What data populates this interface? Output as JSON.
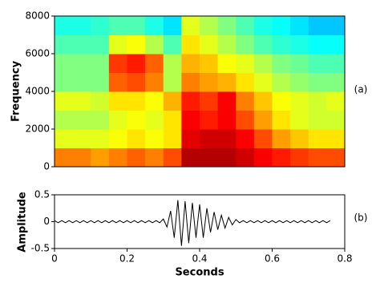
{
  "chart_data": [
    {
      "type": "heatmap",
      "annotation": "(a)",
      "y_label": "Frequency",
      "xlim": [
        0,
        0.8
      ],
      "ylim": [
        0,
        8000
      ],
      "yticks": [
        0,
        2000,
        4000,
        6000,
        8000
      ],
      "colormap": "jet",
      "z": [
        [
          0.75,
          0.75,
          0.72,
          0.75,
          0.78,
          0.75,
          0.8,
          0.95,
          0.95,
          0.95,
          0.92,
          0.88,
          0.85,
          0.82,
          0.8,
          0.8
        ],
        [
          0.6,
          0.6,
          0.6,
          0.62,
          0.65,
          0.62,
          0.65,
          0.9,
          0.92,
          0.92,
          0.88,
          0.8,
          0.72,
          0.68,
          0.65,
          0.65
        ],
        [
          0.55,
          0.55,
          0.55,
          0.6,
          0.62,
          0.6,
          0.65,
          0.88,
          0.85,
          0.88,
          0.8,
          0.72,
          0.65,
          0.6,
          0.58,
          0.58
        ],
        [
          0.6,
          0.6,
          0.58,
          0.65,
          0.65,
          0.62,
          0.7,
          0.85,
          0.82,
          0.88,
          0.75,
          0.68,
          0.62,
          0.6,
          0.58,
          0.6
        ],
        [
          0.5,
          0.5,
          0.5,
          0.78,
          0.8,
          0.75,
          0.55,
          0.75,
          0.72,
          0.7,
          0.65,
          0.6,
          0.55,
          0.52,
          0.5,
          0.5
        ],
        [
          0.5,
          0.5,
          0.5,
          0.82,
          0.85,
          0.78,
          0.55,
          0.7,
          0.68,
          0.62,
          0.6,
          0.55,
          0.5,
          0.48,
          0.45,
          0.45
        ],
        [
          0.45,
          0.45,
          0.45,
          0.6,
          0.62,
          0.55,
          0.45,
          0.65,
          0.6,
          0.55,
          0.5,
          0.45,
          0.42,
          0.4,
          0.38,
          0.38
        ],
        [
          0.4,
          0.4,
          0.42,
          0.45,
          0.45,
          0.4,
          0.35,
          0.6,
          0.55,
          0.5,
          0.45,
          0.4,
          0.38,
          0.35,
          0.32,
          0.32
        ]
      ]
    },
    {
      "type": "line",
      "annotation": "(b)",
      "x_label": "Seconds",
      "y_label": "Amplitude",
      "color": "#000000",
      "xlim": [
        0,
        0.8
      ],
      "xticks": [
        0,
        0.2,
        0.4,
        0.6,
        0.8
      ],
      "ylim": [
        -0.5,
        0.5
      ],
      "yticks": [
        -0.5,
        0,
        0.5
      ],
      "x": [
        0,
        0.01,
        0.02,
        0.03,
        0.04,
        0.05,
        0.06,
        0.07,
        0.08,
        0.09,
        0.1,
        0.11,
        0.12,
        0.13,
        0.14,
        0.15,
        0.16,
        0.17,
        0.18,
        0.19,
        0.2,
        0.21,
        0.22,
        0.23,
        0.24,
        0.25,
        0.26,
        0.27,
        0.28,
        0.29,
        0.3,
        0.31,
        0.32,
        0.33,
        0.34,
        0.35,
        0.36,
        0.37,
        0.38,
        0.39,
        0.4,
        0.41,
        0.42,
        0.43,
        0.44,
        0.45,
        0.46,
        0.47,
        0.48,
        0.49,
        0.5,
        0.51,
        0.52,
        0.53,
        0.54,
        0.55,
        0.56,
        0.57,
        0.58,
        0.59,
        0.6,
        0.61,
        0.62,
        0.63,
        0.64,
        0.65,
        0.66,
        0.67,
        0.68,
        0.69,
        0.7,
        0.71,
        0.72,
        0.73,
        0.74,
        0.75,
        0.76
      ],
      "values": [
        0.02,
        -0.02,
        0.02,
        -0.02,
        0.02,
        -0.02,
        0.02,
        -0.02,
        0.02,
        -0.02,
        0.02,
        -0.02,
        0.02,
        -0.02,
        0.02,
        -0.02,
        0.02,
        -0.02,
        0.02,
        -0.02,
        0.02,
        -0.02,
        0.02,
        -0.02,
        0.02,
        -0.02,
        0.02,
        -0.02,
        0.02,
        -0.02,
        0.05,
        -0.1,
        0.2,
        -0.3,
        0.4,
        -0.45,
        0.38,
        -0.4,
        0.35,
        -0.3,
        0.32,
        -0.3,
        0.25,
        -0.2,
        0.18,
        -0.15,
        0.12,
        -0.12,
        0.08,
        -0.06,
        0.04,
        -0.02,
        0.02,
        -0.02,
        0.02,
        -0.02,
        0.02,
        -0.02,
        0.02,
        -0.02,
        0.02,
        -0.02,
        0.02,
        -0.02,
        0.02,
        -0.02,
        0.02,
        -0.02,
        0.02,
        -0.02,
        0.02,
        -0.02,
        0.02,
        -0.02,
        0.02,
        -0.02,
        0.02
      ]
    }
  ]
}
